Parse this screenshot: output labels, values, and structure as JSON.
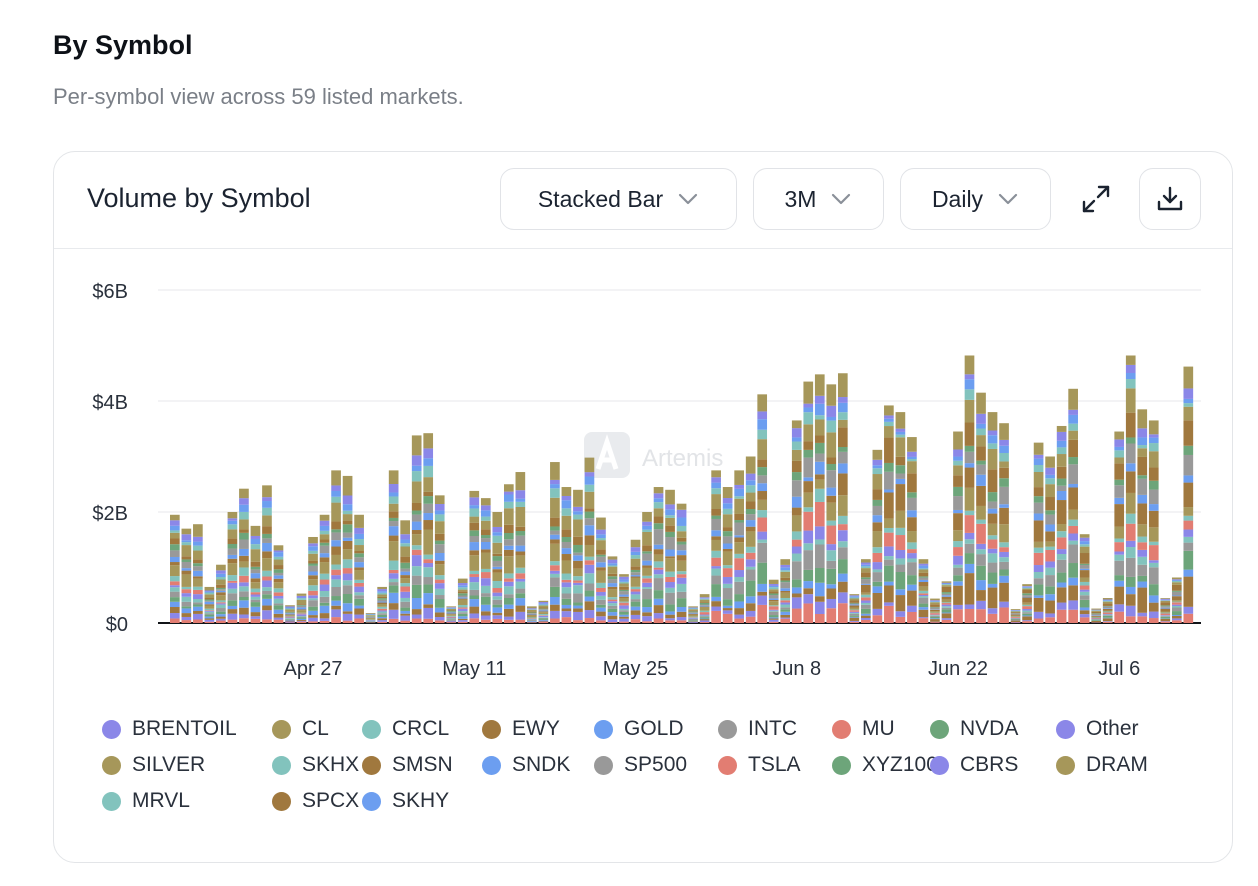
{
  "section": {
    "title": "By Symbol",
    "subtitle": "Per-symbol view across 59 listed markets."
  },
  "card": {
    "title": "Volume by Symbol",
    "controls": {
      "chart_type": "Stacked Bar",
      "range": "3M",
      "granularity": "Daily"
    },
    "icons": {
      "chevron": "chevron-down-icon",
      "expand": "expand-icon",
      "download": "download-icon"
    },
    "watermark": "Artemis"
  },
  "chart_data": {
    "type": "bar",
    "stacked": true,
    "y_ticks": [
      "$0",
      "$2B",
      "$4B",
      "$6B"
    ],
    "y_tick_values": [
      0,
      2,
      4,
      6
    ],
    "ylim": [
      0,
      6
    ],
    "y_unit": "USD billions",
    "x_ticks": [
      {
        "label": "Apr 27",
        "index": 12
      },
      {
        "label": "May 11",
        "index": 26
      },
      {
        "label": "May 25",
        "index": 40
      },
      {
        "label": "Jun 8",
        "index": 54
      },
      {
        "label": "Jun 22",
        "index": 68
      },
      {
        "label": "Jul 6",
        "index": 82
      }
    ],
    "daily_totals": [
      1.95,
      1.7,
      1.78,
      0.65,
      1.05,
      2.0,
      2.42,
      1.75,
      2.48,
      1.4,
      0.32,
      0.53,
      1.55,
      1.95,
      2.75,
      2.65,
      1.95,
      0.18,
      0.65,
      2.75,
      1.85,
      3.38,
      3.42,
      2.3,
      0.3,
      0.8,
      2.38,
      2.25,
      2.0,
      2.5,
      2.72,
      0.3,
      0.4,
      2.9,
      2.45,
      2.4,
      2.98,
      1.9,
      1.2,
      0.88,
      1.5,
      2.0,
      2.45,
      2.4,
      2.15,
      0.3,
      0.52,
      2.75,
      2.45,
      2.75,
      3.0,
      4.12,
      0.78,
      1.15,
      3.65,
      4.35,
      4.48,
      4.3,
      4.5,
      0.52,
      1.15,
      3.12,
      3.92,
      3.8,
      3.35,
      1.15,
      0.44,
      0.75,
      3.45,
      4.82,
      4.15,
      3.8,
      3.6,
      0.25,
      0.7,
      3.25,
      3.0,
      3.55,
      4.22,
      1.6,
      0.26,
      0.45,
      3.45,
      4.82,
      3.85,
      3.65,
      0.45,
      0.82,
      4.62
    ],
    "series_order": [
      "MU",
      "CBRS",
      "SPCX",
      "SKHY",
      "NVDA",
      "INTC",
      "SKHX",
      "BRENTOIL",
      "TSLA",
      "MRVL",
      "CL",
      "EWY",
      "GOLD",
      "SP500",
      "XYZ100",
      "SMSN",
      "SILVER",
      "CRCL",
      "SNDK",
      "Other",
      "DRAM"
    ],
    "legend": [
      {
        "name": "BRENTOIL",
        "color": "#8b87e8"
      },
      {
        "name": "CL",
        "color": "#a6975a"
      },
      {
        "name": "CRCL",
        "color": "#82c3bd"
      },
      {
        "name": "EWY",
        "color": "#a0783e"
      },
      {
        "name": "GOLD",
        "color": "#6c9ef0"
      },
      {
        "name": "INTC",
        "color": "#999999"
      },
      {
        "name": "MU",
        "color": "#e27d72"
      },
      {
        "name": "NVDA",
        "color": "#6da57a"
      },
      {
        "name": "Other",
        "color": "#8b87e8"
      },
      {
        "name": "SILVER",
        "color": "#a6975a"
      },
      {
        "name": "SKHX",
        "color": "#82c3bd"
      },
      {
        "name": "SMSN",
        "color": "#a0783e"
      },
      {
        "name": "SNDK",
        "color": "#6c9ef0"
      },
      {
        "name": "SP500",
        "color": "#999999"
      },
      {
        "name": "TSLA",
        "color": "#e27d72"
      },
      {
        "name": "XYZ100",
        "color": "#6da57a"
      },
      {
        "name": "CBRS",
        "color": "#8b87e8"
      },
      {
        "name": "DRAM",
        "color": "#a6975a"
      },
      {
        "name": "MRVL",
        "color": "#82c3bd"
      },
      {
        "name": "SPCX",
        "color": "#a0783e"
      },
      {
        "name": "SKHY",
        "color": "#6c9ef0"
      }
    ],
    "grid": true,
    "legend_position": "bottom"
  }
}
